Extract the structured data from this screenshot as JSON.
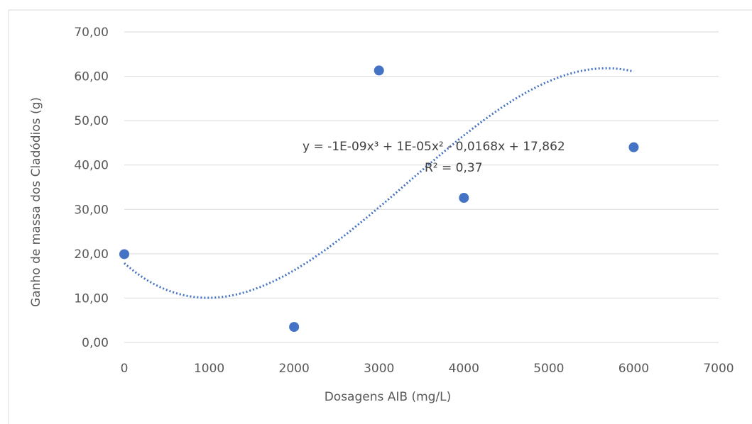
{
  "chart_data": {
    "type": "scatter",
    "title": "",
    "xlabel": "Dosagens AIB (mg/L)",
    "ylabel": "Ganho de massa dos Cladódios (g)",
    "xlim": [
      0,
      7000
    ],
    "ylim": [
      0,
      70
    ],
    "xticks": [
      0,
      1000,
      2000,
      3000,
      4000,
      5000,
      6000,
      7000
    ],
    "xtick_labels": [
      "0",
      "1000",
      "2000",
      "3000",
      "4000",
      "5000",
      "6000",
      "7000"
    ],
    "yticks": [
      0,
      10,
      20,
      30,
      40,
      50,
      60,
      70
    ],
    "ytick_labels": [
      "0,00",
      "10,00",
      "20,00",
      "30,00",
      "40,00",
      "50,00",
      "60,00",
      "70,00"
    ],
    "grid": "horizontal",
    "legend": "none",
    "series": [
      {
        "x": [
          0,
          2000,
          3000,
          4000,
          6000
        ],
        "y": [
          19.9,
          3.5,
          61.3,
          32.6,
          44.0
        ],
        "color": "#4472c4"
      }
    ],
    "trendline": {
      "type": "polynomial",
      "order": 3,
      "coefficients": [
        -1e-09,
        1e-05,
        -0.0168,
        17.862
      ],
      "x_range": [
        0,
        6000
      ],
      "style": "dotted",
      "color": "#4472c4"
    },
    "annotations": {
      "equation": "y = -1E-09x³ + 1E-05x² - 0,0168x + 17,862",
      "r_squared": "R² = 0,37"
    }
  }
}
